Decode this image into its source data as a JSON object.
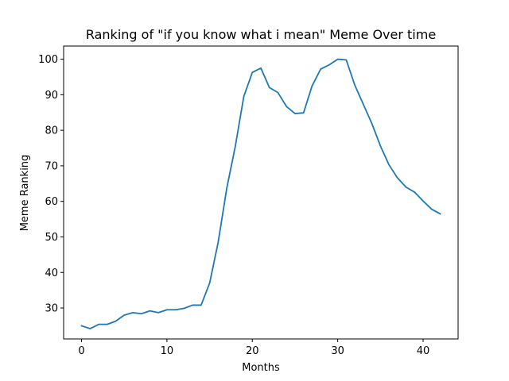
{
  "chart_data": {
    "type": "line",
    "title": "Ranking of \"if you know what i mean\" Meme Over time",
    "xlabel": "Months",
    "ylabel": "Meme Ranking",
    "xlim": [
      -2.1,
      44.1
    ],
    "ylim": [
      21.3,
      103.7
    ],
    "xticks": [
      0,
      10,
      20,
      30,
      40
    ],
    "yticks": [
      30,
      40,
      50,
      60,
      70,
      80,
      90,
      100
    ],
    "grid": false,
    "series": [
      {
        "color": "#1f77b4",
        "x": [
          0,
          1,
          2,
          3,
          4,
          5,
          6,
          7,
          8,
          9,
          10,
          11,
          12,
          13,
          14,
          15,
          16,
          17,
          18,
          19,
          20,
          21,
          22,
          23,
          24,
          25,
          26,
          27,
          28,
          29,
          30,
          31,
          32,
          33,
          34,
          35,
          36,
          37,
          38,
          39,
          40,
          41,
          42
        ],
        "y": [
          25.0,
          24.2,
          25.4,
          25.4,
          26.3,
          28.0,
          28.7,
          28.4,
          29.2,
          28.7,
          29.5,
          29.5,
          29.9,
          30.8,
          30.8,
          37.0,
          48.5,
          63.6,
          75.4,
          89.5,
          96.3,
          97.5,
          92.0,
          90.6,
          86.7,
          84.7,
          84.9,
          92.5,
          97.2,
          98.4,
          100.0,
          99.8,
          92.7,
          87.3,
          81.9,
          75.6,
          70.3,
          66.6,
          64.0,
          62.6,
          60.1,
          57.8,
          56.5
        ]
      }
    ]
  }
}
